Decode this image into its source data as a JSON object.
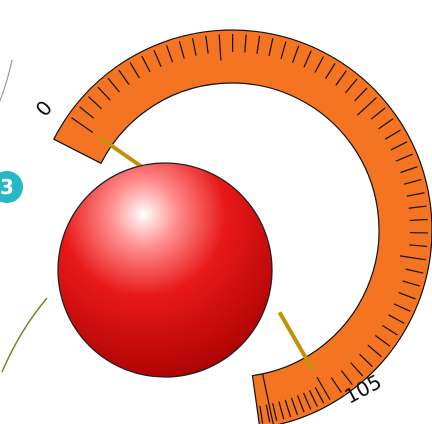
{
  "gauge": {
    "scale_min_label": "0",
    "scale_max_label": "105",
    "scale_min_value": 0,
    "scale_max_value": 105,
    "needle_values": [
      0,
      105
    ],
    "band_color": "#f47421",
    "needle_color": "#c4900a",
    "tick_color": "#111111"
  },
  "badge": {
    "text": "3",
    "color": "#26b8c4"
  },
  "ball": {
    "color": "#e01515",
    "highlight_color": "#ffffff"
  },
  "curves": {
    "color": "#6a8a2a"
  }
}
